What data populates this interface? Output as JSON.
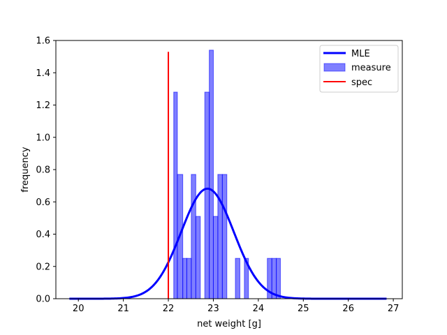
{
  "chart_data": {
    "type": "bar",
    "title": "",
    "xlabel": "net weight [g]",
    "ylabel": "frequency",
    "xlim": [
      19.5,
      27.2
    ],
    "ylim": [
      0,
      1.6
    ],
    "xticks": [
      20,
      21,
      22,
      23,
      24,
      25,
      26,
      27
    ],
    "yticks": [
      0.0,
      0.2,
      0.4,
      0.6,
      0.8,
      1.0,
      1.2,
      1.4,
      1.6
    ],
    "xtick_labels": [
      "20",
      "21",
      "22",
      "23",
      "24",
      "25",
      "26",
      "27"
    ],
    "ytick_labels": [
      "0.0",
      "0.2",
      "0.4",
      "0.6",
      "0.8",
      "1.0",
      "1.2",
      "1.4",
      "1.6"
    ],
    "grid": false,
    "legend_position": "top-right",
    "histogram": {
      "name": "measure",
      "color": "#0000ff",
      "bins": [
        {
          "x0": 22.12,
          "x1": 22.2,
          "value": 1.28
        },
        {
          "x0": 22.2,
          "x1": 22.32,
          "value": 0.77
        },
        {
          "x0": 22.32,
          "x1": 22.41,
          "value": 0.25
        },
        {
          "x0": 22.41,
          "x1": 22.51,
          "value": 0.25
        },
        {
          "x0": 22.51,
          "x1": 22.61,
          "value": 0.77
        },
        {
          "x0": 22.61,
          "x1": 22.71,
          "value": 0.51
        },
        {
          "x0": 22.81,
          "x1": 22.91,
          "value": 1.28
        },
        {
          "x0": 22.91,
          "x1": 23.0,
          "value": 1.54
        },
        {
          "x0": 23.0,
          "x1": 23.1,
          "value": 0.51
        },
        {
          "x0": 23.1,
          "x1": 23.2,
          "value": 0.77
        },
        {
          "x0": 23.2,
          "x1": 23.3,
          "value": 0.77
        },
        {
          "x0": 23.49,
          "x1": 23.59,
          "value": 0.25
        },
        {
          "x0": 23.69,
          "x1": 23.78,
          "value": 0.25
        },
        {
          "x0": 24.2,
          "x1": 24.3,
          "value": 0.25
        },
        {
          "x0": 24.3,
          "x1": 24.4,
          "value": 0.25
        },
        {
          "x0": 24.4,
          "x1": 24.49,
          "value": 0.25
        }
      ]
    },
    "series": [
      {
        "name": "MLE",
        "type": "normal-pdf",
        "mean": 22.87,
        "std": 0.585,
        "x_range": [
          19.8,
          26.85
        ],
        "color": "#0000ff"
      },
      {
        "name": "spec",
        "type": "vline",
        "x": 22.0,
        "y_range": [
          0,
          1.53
        ],
        "color": "#ff0000"
      }
    ],
    "legend": [
      {
        "label": "MLE",
        "kind": "line",
        "color": "#0000ff"
      },
      {
        "label": "measure",
        "kind": "patch",
        "color": "#0000ff"
      },
      {
        "label": "spec",
        "kind": "line",
        "color": "#ff0000"
      }
    ]
  }
}
